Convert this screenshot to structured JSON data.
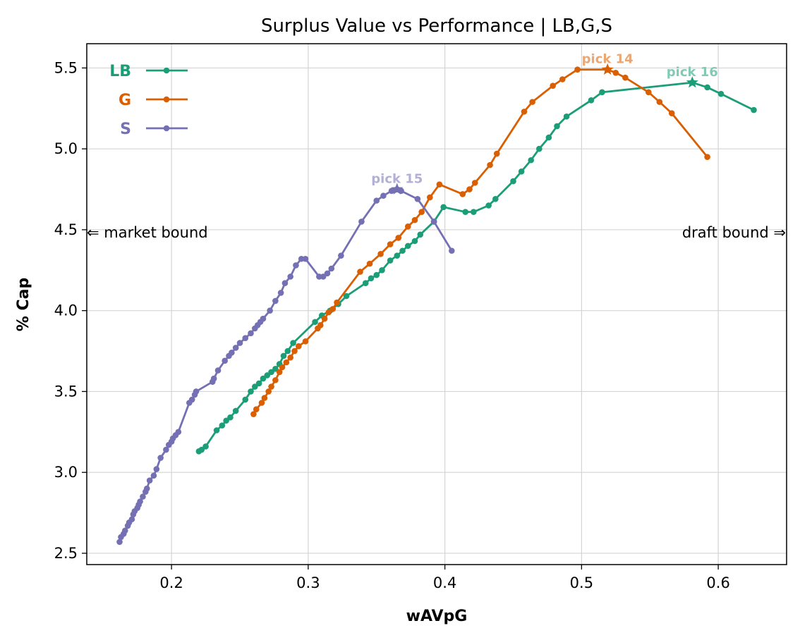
{
  "chart_data": {
    "type": "line",
    "title": "Surplus Value vs Performance | LB,G,S",
    "xlabel": "wAVpG",
    "ylabel": "% Cap",
    "xlim": [
      0.138,
      0.65
    ],
    "ylim": [
      2.43,
      5.65
    ],
    "xticks": [
      0.2,
      0.3,
      0.4,
      0.5,
      0.6
    ],
    "xtick_labels": [
      "0.2",
      "0.3",
      "0.4",
      "0.5",
      "0.6"
    ],
    "yticks": [
      2.5,
      3.0,
      3.5,
      4.0,
      4.5,
      5.0,
      5.5
    ],
    "ytick_labels": [
      "2.5",
      "3.0",
      "3.5",
      "4.0",
      "4.5",
      "5.0",
      "5.5"
    ],
    "grid": true,
    "legend_position": "top-left",
    "annotations": {
      "left": "⇐ market bound",
      "right": "draft bound ⇒"
    },
    "series": [
      {
        "name": "LB",
        "color": "#1b9e77",
        "x": [
          0.22,
          0.222,
          0.225,
          0.233,
          0.237,
          0.24,
          0.243,
          0.247,
          0.254,
          0.258,
          0.261,
          0.264,
          0.267,
          0.27,
          0.273,
          0.276,
          0.279,
          0.282,
          0.285,
          0.289,
          0.305,
          0.31,
          0.316,
          0.322,
          0.328,
          0.342,
          0.346,
          0.35,
          0.354,
          0.36,
          0.365,
          0.369,
          0.373,
          0.378,
          0.382,
          0.392,
          0.399,
          0.415,
          0.421,
          0.432,
          0.437,
          0.45,
          0.456,
          0.463,
          0.469,
          0.476,
          0.482,
          0.489,
          0.507,
          0.515,
          0.581,
          0.592,
          0.602,
          0.626
        ],
        "y": [
          3.13,
          3.14,
          3.16,
          3.26,
          3.29,
          3.32,
          3.34,
          3.38,
          3.45,
          3.5,
          3.53,
          3.55,
          3.58,
          3.6,
          3.62,
          3.64,
          3.67,
          3.72,
          3.75,
          3.8,
          3.93,
          3.97,
          4.0,
          4.04,
          4.09,
          4.17,
          4.2,
          4.22,
          4.25,
          4.31,
          4.34,
          4.37,
          4.4,
          4.43,
          4.47,
          4.55,
          4.64,
          4.61,
          4.61,
          4.65,
          4.69,
          4.8,
          4.86,
          4.93,
          5.0,
          5.07,
          5.14,
          5.2,
          5.3,
          5.35,
          5.41,
          5.38,
          5.34,
          5.24
        ],
        "peak": {
          "x": 0.581,
          "y": 5.41,
          "label": "pick 16"
        }
      },
      {
        "name": "G",
        "color": "#d95f02",
        "x": [
          0.26,
          0.262,
          0.266,
          0.268,
          0.271,
          0.273,
          0.276,
          0.279,
          0.281,
          0.284,
          0.287,
          0.29,
          0.293,
          0.298,
          0.307,
          0.309,
          0.312,
          0.315,
          0.318,
          0.321,
          0.338,
          0.345,
          0.353,
          0.36,
          0.366,
          0.373,
          0.378,
          0.383,
          0.389,
          0.396,
          0.413,
          0.418,
          0.422,
          0.433,
          0.438,
          0.458,
          0.464,
          0.479,
          0.486,
          0.497,
          0.519,
          0.525,
          0.532,
          0.549,
          0.557,
          0.566,
          0.592
        ],
        "y": [
          3.36,
          3.39,
          3.43,
          3.46,
          3.5,
          3.53,
          3.57,
          3.62,
          3.65,
          3.68,
          3.71,
          3.75,
          3.78,
          3.81,
          3.89,
          3.91,
          3.95,
          3.99,
          4.01,
          4.05,
          4.24,
          4.29,
          4.35,
          4.41,
          4.45,
          4.52,
          4.56,
          4.61,
          4.7,
          4.78,
          4.72,
          4.75,
          4.79,
          4.9,
          4.97,
          5.23,
          5.29,
          5.39,
          5.43,
          5.49,
          5.49,
          5.47,
          5.44,
          5.35,
          5.29,
          5.22,
          4.95
        ],
        "peak": {
          "x": 0.519,
          "y": 5.49,
          "label": "pick 14"
        }
      },
      {
        "name": "S",
        "color": "#7570b3",
        "x": [
          0.162,
          0.163,
          0.165,
          0.166,
          0.168,
          0.169,
          0.171,
          0.172,
          0.173,
          0.175,
          0.176,
          0.177,
          0.179,
          0.181,
          0.182,
          0.184,
          0.187,
          0.189,
          0.192,
          0.196,
          0.198,
          0.2,
          0.201,
          0.203,
          0.205,
          0.213,
          0.215,
          0.217,
          0.218,
          0.23,
          0.231,
          0.234,
          0.239,
          0.242,
          0.244,
          0.247,
          0.25,
          0.254,
          0.258,
          0.261,
          0.263,
          0.265,
          0.267,
          0.272,
          0.276,
          0.28,
          0.283,
          0.287,
          0.291,
          0.295,
          0.298,
          0.308,
          0.311,
          0.314,
          0.317,
          0.324,
          0.339,
          0.35,
          0.355,
          0.361,
          0.365,
          0.368,
          0.38,
          0.392,
          0.405
        ],
        "y": [
          2.57,
          2.6,
          2.62,
          2.64,
          2.67,
          2.69,
          2.71,
          2.74,
          2.76,
          2.78,
          2.8,
          2.82,
          2.85,
          2.88,
          2.9,
          2.95,
          2.98,
          3.02,
          3.09,
          3.14,
          3.17,
          3.19,
          3.21,
          3.23,
          3.25,
          3.43,
          3.45,
          3.48,
          3.5,
          3.56,
          3.58,
          3.63,
          3.69,
          3.72,
          3.74,
          3.77,
          3.8,
          3.83,
          3.86,
          3.89,
          3.91,
          3.93,
          3.95,
          4.0,
          4.06,
          4.11,
          4.17,
          4.21,
          4.28,
          4.32,
          4.32,
          4.21,
          4.21,
          4.23,
          4.26,
          4.34,
          4.55,
          4.68,
          4.71,
          4.74,
          4.75,
          4.74,
          4.69,
          4.55,
          4.37
        ],
        "peak": {
          "x": 0.365,
          "y": 4.75,
          "label": "pick 15"
        }
      }
    ]
  }
}
